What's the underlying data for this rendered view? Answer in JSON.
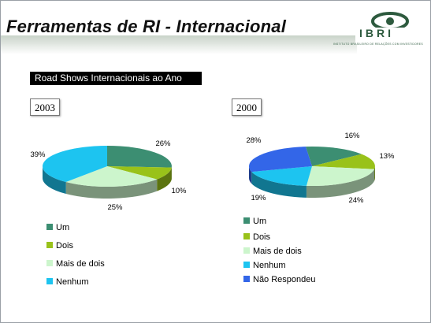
{
  "header": {
    "title": "Ferramentas de RI - Internacional",
    "logo_text": "IBRI",
    "logo_subtext": "INSTITUTO BRASILEIRO DE RELAÇÕES COM INVESTIDORES"
  },
  "subtitle": "Road Shows Internacionais ao Ano",
  "chart_data": [
    {
      "type": "pie",
      "title": "2003",
      "categories": [
        "Um",
        "Dois",
        "Mais de dois",
        "Nenhum"
      ],
      "values": [
        26,
        10,
        25,
        39
      ],
      "labels": [
        "26%",
        "10%",
        "25%",
        "39%"
      ],
      "colors": [
        "#3c8e72",
        "#99c21a",
        "#ccf5cc",
        "#1dc4f0"
      ]
    },
    {
      "type": "pie",
      "title": "2000",
      "categories": [
        "Um",
        "Dois",
        "Mais de dois",
        "Nenhum",
        "Não Respondeu"
      ],
      "values": [
        16,
        13,
        24,
        19,
        28
      ],
      "labels": [
        "16%",
        "13%",
        "24%",
        "19%",
        "28%"
      ],
      "colors": [
        "#3c8e72",
        "#99c21a",
        "#ccf5cc",
        "#1dc4f0",
        "#3366e8"
      ]
    }
  ]
}
